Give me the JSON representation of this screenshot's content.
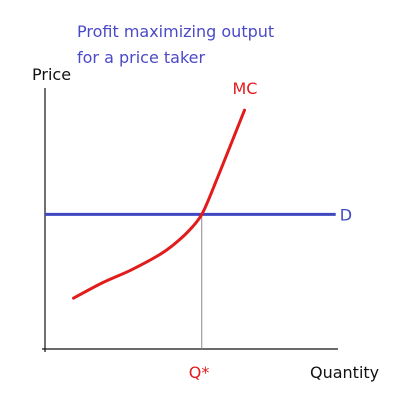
{
  "chart_data": {
    "type": "line",
    "title": "Profit maximizing output for a price taker",
    "title_lines": [
      "Profit maximizing output",
      "for a price taker"
    ],
    "xlabel": "Quantity",
    "ylabel": "Price",
    "grid": false,
    "x_tick_labels": [
      {
        "x": 0.55,
        "label": "Q*"
      }
    ],
    "xlim": [
      0,
      1
    ],
    "ylim": [
      0,
      1
    ],
    "series": [
      {
        "name": "MC",
        "x": [
          0.1,
          0.2,
          0.3,
          0.4,
          0.45,
          0.5,
          0.55,
          0.6,
          0.65,
          0.7
        ],
        "y": [
          0.2,
          0.26,
          0.31,
          0.37,
          0.41,
          0.46,
          0.53,
          0.66,
          0.8,
          0.94
        ]
      },
      {
        "name": "D",
        "x": [
          0,
          1.02
        ],
        "y": [
          0.53,
          0.53
        ]
      }
    ],
    "annotations": [
      {
        "type": "dropline",
        "x": 0.55,
        "y": 0.53
      }
    ]
  },
  "colors": {
    "title": "#4a4ac8",
    "mc_curve": "#e21b1b",
    "demand_line": "#3f48c0",
    "axis": "#111111",
    "dropline": "#8a8a8a",
    "q_star": "#e21b1b"
  }
}
